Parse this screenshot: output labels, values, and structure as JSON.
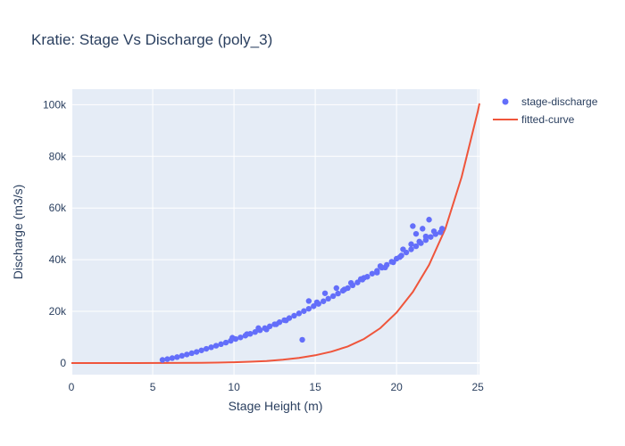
{
  "chart_data": {
    "type": "scatter",
    "title": "Kratie: Stage Vs Discharge (poly_3)",
    "xlabel": "Stage Height (m)",
    "ylabel": "Discharge (m3/s)",
    "xlim": [
      0,
      25.1
    ],
    "ylim": [
      -4500,
      106000
    ],
    "x_ticks": [
      0,
      5,
      10,
      15,
      20,
      25
    ],
    "x_tick_labels": [
      "0",
      "5",
      "10",
      "15",
      "20",
      "25"
    ],
    "y_ticks": [
      0,
      20000,
      40000,
      60000,
      80000,
      100000
    ],
    "y_tick_labels": [
      "0",
      "20k",
      "40k",
      "60k",
      "80k",
      "100k"
    ],
    "grid": true,
    "legend_position": "top-right",
    "series": [
      {
        "name": "stage-discharge",
        "kind": "markers",
        "color": "#636efa",
        "x": [
          5.6,
          5.9,
          6.2,
          6.5,
          6.8,
          7.1,
          7.4,
          7.7,
          8.0,
          8.3,
          8.6,
          8.9,
          9.2,
          9.5,
          9.8,
          10.1,
          10.4,
          10.7,
          11.0,
          11.3,
          11.6,
          11.9,
          12.2,
          12.5,
          12.8,
          13.1,
          13.4,
          13.7,
          14.0,
          14.3,
          14.6,
          14.9,
          15.2,
          15.5,
          15.8,
          16.1,
          16.4,
          16.7,
          17.0,
          17.3,
          17.6,
          17.9,
          18.2,
          18.5,
          18.8,
          19.1,
          19.4,
          19.7,
          20.0,
          20.3,
          20.6,
          20.9,
          21.2,
          21.5,
          21.8,
          22.1,
          22.4,
          22.7,
          9.9,
          10.8,
          12.0,
          13.2,
          14.2,
          14.6,
          15.1,
          15.6,
          16.3,
          17.2,
          18.0,
          18.8,
          19.3,
          19.8,
          20.2,
          20.4,
          20.9,
          21.0,
          21.2,
          21.4,
          21.6,
          21.8,
          22.0,
          22.3,
          22.8,
          11.5,
          12.6,
          16.8,
          17.8,
          19.0
        ],
        "y": [
          1200,
          1500,
          1900,
          2300,
          2800,
          3300,
          3800,
          4300,
          4900,
          5500,
          6100,
          6700,
          7300,
          7900,
          8600,
          9300,
          9900,
          10600,
          11300,
          12000,
          12700,
          13500,
          14200,
          15000,
          15800,
          16600,
          17400,
          18300,
          19200,
          20100,
          21000,
          22000,
          22900,
          23900,
          24900,
          25900,
          26900,
          28000,
          29000,
          30100,
          31200,
          32300,
          33400,
          34600,
          35700,
          36900,
          38000,
          39200,
          40400,
          41600,
          42800,
          44000,
          45200,
          46400,
          47600,
          48800,
          49900,
          50600,
          9800,
          11200,
          13000,
          16500,
          9000,
          24000,
          23500,
          27000,
          29000,
          31000,
          33000,
          35000,
          37000,
          39000,
          41000,
          44000,
          46000,
          53000,
          50000,
          47000,
          52000,
          49000,
          55500,
          51000,
          52000,
          13500,
          15000,
          28500,
          32500,
          37500
        ]
      },
      {
        "name": "fitted-curve",
        "kind": "line",
        "color": "#ef553b",
        "x": [
          0,
          2,
          4,
          6,
          8,
          9,
          10,
          11,
          12,
          13,
          14,
          15,
          16,
          17,
          18,
          19,
          20,
          21,
          22,
          23,
          24,
          25,
          25.1
        ],
        "y": [
          0,
          0,
          0,
          30,
          90,
          150,
          300,
          500,
          800,
          1300,
          2000,
          3000,
          4400,
          6400,
          9300,
          13500,
          19500,
          27500,
          38000,
          52000,
          72000,
          97500,
          100500
        ]
      }
    ]
  }
}
